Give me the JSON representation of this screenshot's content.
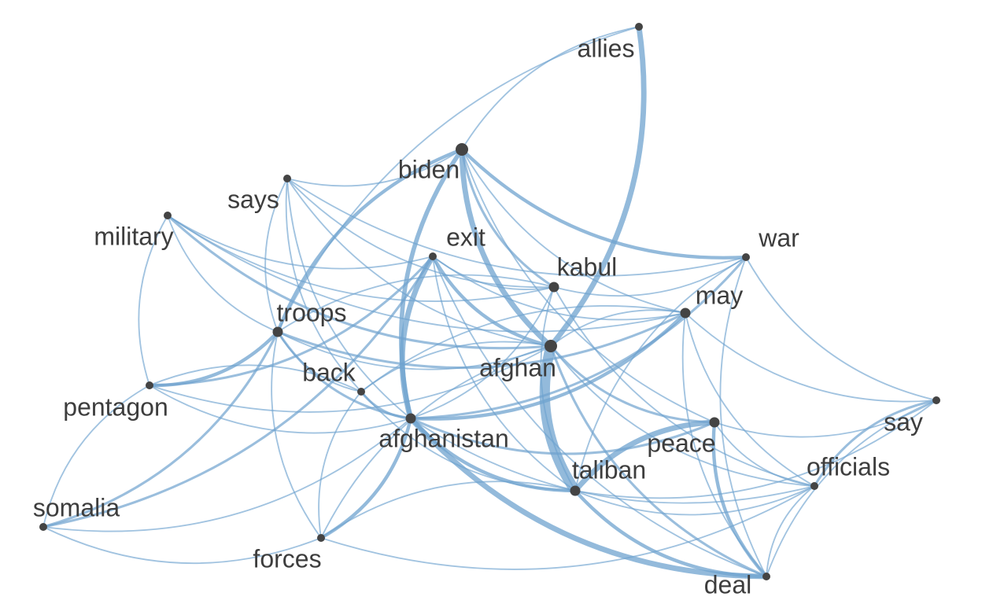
{
  "graph": {
    "type": "word-cooccurrence-network",
    "edge_color": "#6fa3cf",
    "node_color": "#444444",
    "label_color": "#3d3d3d",
    "nodes": [
      {
        "id": "allies",
        "label": "allies",
        "importance": 1
      },
      {
        "id": "biden",
        "label": "biden",
        "importance": 3
      },
      {
        "id": "says",
        "label": "says",
        "importance": 1
      },
      {
        "id": "military",
        "label": "military",
        "importance": 1
      },
      {
        "id": "exit",
        "label": "exit",
        "importance": 1
      },
      {
        "id": "kabul",
        "label": "kabul",
        "importance": 2
      },
      {
        "id": "war",
        "label": "war",
        "importance": 1
      },
      {
        "id": "may",
        "label": "may",
        "importance": 2
      },
      {
        "id": "troops",
        "label": "troops",
        "importance": 2
      },
      {
        "id": "afghan",
        "label": "afghan",
        "importance": 3
      },
      {
        "id": "back",
        "label": "back",
        "importance": 1
      },
      {
        "id": "pentagon",
        "label": "pentagon",
        "importance": 1
      },
      {
        "id": "afghanistan",
        "label": "afghanistan",
        "importance": 2
      },
      {
        "id": "peace",
        "label": "peace",
        "importance": 2
      },
      {
        "id": "say",
        "label": "say",
        "importance": 1
      },
      {
        "id": "taliban",
        "label": "taliban",
        "importance": 2
      },
      {
        "id": "officials",
        "label": "officials",
        "importance": 1
      },
      {
        "id": "somalia",
        "label": "somalia",
        "importance": 1
      },
      {
        "id": "forces",
        "label": "forces",
        "importance": 1
      },
      {
        "id": "deal",
        "label": "deal",
        "importance": 1
      }
    ],
    "edges": [
      {
        "source": "afghan",
        "target": "taliban",
        "weight": 10
      },
      {
        "source": "afghan",
        "target": "allies",
        "weight": 5
      },
      {
        "source": "biden",
        "target": "afghan",
        "weight": 5
      },
      {
        "source": "exit",
        "target": "afghanistan",
        "weight": 5
      },
      {
        "source": "peace",
        "target": "taliban",
        "weight": 5
      },
      {
        "source": "afghanistan",
        "target": "deal",
        "weight": 5
      },
      {
        "source": "biden",
        "target": "afghanistan",
        "weight": 4
      },
      {
        "source": "biden",
        "target": "troops",
        "weight": 3
      },
      {
        "source": "biden",
        "target": "war",
        "weight": 3
      },
      {
        "source": "afghanistan",
        "target": "taliban",
        "weight": 3
      },
      {
        "source": "afghanistan",
        "target": "may",
        "weight": 3
      },
      {
        "source": "pentagon",
        "target": "troops",
        "weight": 3
      },
      {
        "source": "forces",
        "target": "afghanistan",
        "weight": 3
      },
      {
        "source": "exit",
        "target": "afghan",
        "weight": 3
      },
      {
        "source": "peace",
        "target": "deal",
        "weight": 3
      },
      {
        "source": "taliban",
        "target": "deal",
        "weight": 3
      },
      {
        "source": "military",
        "target": "afghan",
        "weight": 2
      },
      {
        "source": "troops",
        "target": "afghanistan",
        "weight": 2
      },
      {
        "source": "pentagon",
        "target": "exit",
        "weight": 2
      },
      {
        "source": "afghanistan",
        "target": "war",
        "weight": 2
      },
      {
        "source": "afghan",
        "target": "peace",
        "weight": 2
      },
      {
        "source": "afghan",
        "target": "deal",
        "weight": 2
      },
      {
        "source": "somalia",
        "target": "troops",
        "weight": 2
      },
      {
        "source": "somalia",
        "target": "exit",
        "weight": 2
      },
      {
        "source": "say",
        "target": "officials",
        "weight": 2
      },
      {
        "source": "biden",
        "target": "kabul",
        "weight": 2
      },
      {
        "source": "troops",
        "target": "may",
        "weight": 2
      },
      {
        "source": "back",
        "target": "afghanistan",
        "weight": 2
      },
      {
        "source": "afghanistan",
        "target": "peace",
        "weight": 2
      },
      {
        "source": "says",
        "target": "afghan",
        "weight": 1
      },
      {
        "source": "says",
        "target": "afghanistan",
        "weight": 1
      },
      {
        "source": "says",
        "target": "kabul",
        "weight": 1
      },
      {
        "source": "says",
        "target": "troops",
        "weight": 1
      },
      {
        "source": "says",
        "target": "back",
        "weight": 1
      },
      {
        "source": "says",
        "target": "biden",
        "weight": 1
      },
      {
        "source": "military",
        "target": "pentagon",
        "weight": 1
      },
      {
        "source": "military",
        "target": "exit",
        "weight": 1
      },
      {
        "source": "military",
        "target": "kabul",
        "weight": 1
      },
      {
        "source": "military",
        "target": "troops",
        "weight": 1
      },
      {
        "source": "exit",
        "target": "kabul",
        "weight": 1
      },
      {
        "source": "exit",
        "target": "may",
        "weight": 1
      },
      {
        "source": "exit",
        "target": "taliban",
        "weight": 1
      },
      {
        "source": "exit",
        "target": "deal",
        "weight": 1
      },
      {
        "source": "kabul",
        "target": "war",
        "weight": 1
      },
      {
        "source": "kabul",
        "target": "troops",
        "weight": 1
      },
      {
        "source": "kabul",
        "target": "officials",
        "weight": 1
      },
      {
        "source": "kabul",
        "target": "taliban",
        "weight": 1
      },
      {
        "source": "war",
        "target": "taliban",
        "weight": 1
      },
      {
        "source": "war",
        "target": "say",
        "weight": 1
      },
      {
        "source": "war",
        "target": "deal",
        "weight": 1
      },
      {
        "source": "may",
        "target": "afghan",
        "weight": 1
      },
      {
        "source": "may",
        "target": "say",
        "weight": 1
      },
      {
        "source": "may",
        "target": "officials",
        "weight": 1
      },
      {
        "source": "may",
        "target": "deal",
        "weight": 1
      },
      {
        "source": "may",
        "target": "back",
        "weight": 1
      },
      {
        "source": "troops",
        "target": "afghan",
        "weight": 1
      },
      {
        "source": "troops",
        "target": "back",
        "weight": 1
      },
      {
        "source": "troops",
        "target": "forces",
        "weight": 1
      },
      {
        "source": "afghan",
        "target": "officials",
        "weight": 1
      },
      {
        "source": "afghan",
        "target": "forces",
        "weight": 1
      },
      {
        "source": "afghan",
        "target": "back",
        "weight": 1
      },
      {
        "source": "back",
        "target": "pentagon",
        "weight": 1
      },
      {
        "source": "back",
        "target": "taliban",
        "weight": 1
      },
      {
        "source": "back",
        "target": "forces",
        "weight": 1
      },
      {
        "source": "pentagon",
        "target": "afghanistan",
        "weight": 1
      },
      {
        "source": "pentagon",
        "target": "afghan",
        "weight": 1
      },
      {
        "source": "pentagon",
        "target": "somalia",
        "weight": 1
      },
      {
        "source": "afghanistan",
        "target": "officials",
        "weight": 1
      },
      {
        "source": "afghanistan",
        "target": "kabul",
        "weight": 1
      },
      {
        "source": "peace",
        "target": "say",
        "weight": 1
      },
      {
        "source": "peace",
        "target": "officials",
        "weight": 1
      },
      {
        "source": "taliban",
        "target": "officials",
        "weight": 1
      },
      {
        "source": "taliban",
        "target": "forces",
        "weight": 1
      },
      {
        "source": "taliban",
        "target": "say",
        "weight": 1
      },
      {
        "source": "officials",
        "target": "deal",
        "weight": 1
      },
      {
        "source": "somalia",
        "target": "forces",
        "weight": 1
      },
      {
        "source": "somalia",
        "target": "afghanistan",
        "weight": 1
      },
      {
        "source": "forces",
        "target": "officials",
        "weight": 1
      },
      {
        "source": "say",
        "target": "deal",
        "weight": 1
      },
      {
        "source": "allies",
        "target": "biden",
        "weight": 1
      },
      {
        "source": "allies",
        "target": "troops",
        "weight": 1
      },
      {
        "source": "biden",
        "target": "peace",
        "weight": 1
      },
      {
        "source": "biden",
        "target": "may",
        "weight": 1
      },
      {
        "source": "says",
        "target": "war",
        "weight": 1
      },
      {
        "source": "military",
        "target": "may",
        "weight": 1
      }
    ]
  }
}
